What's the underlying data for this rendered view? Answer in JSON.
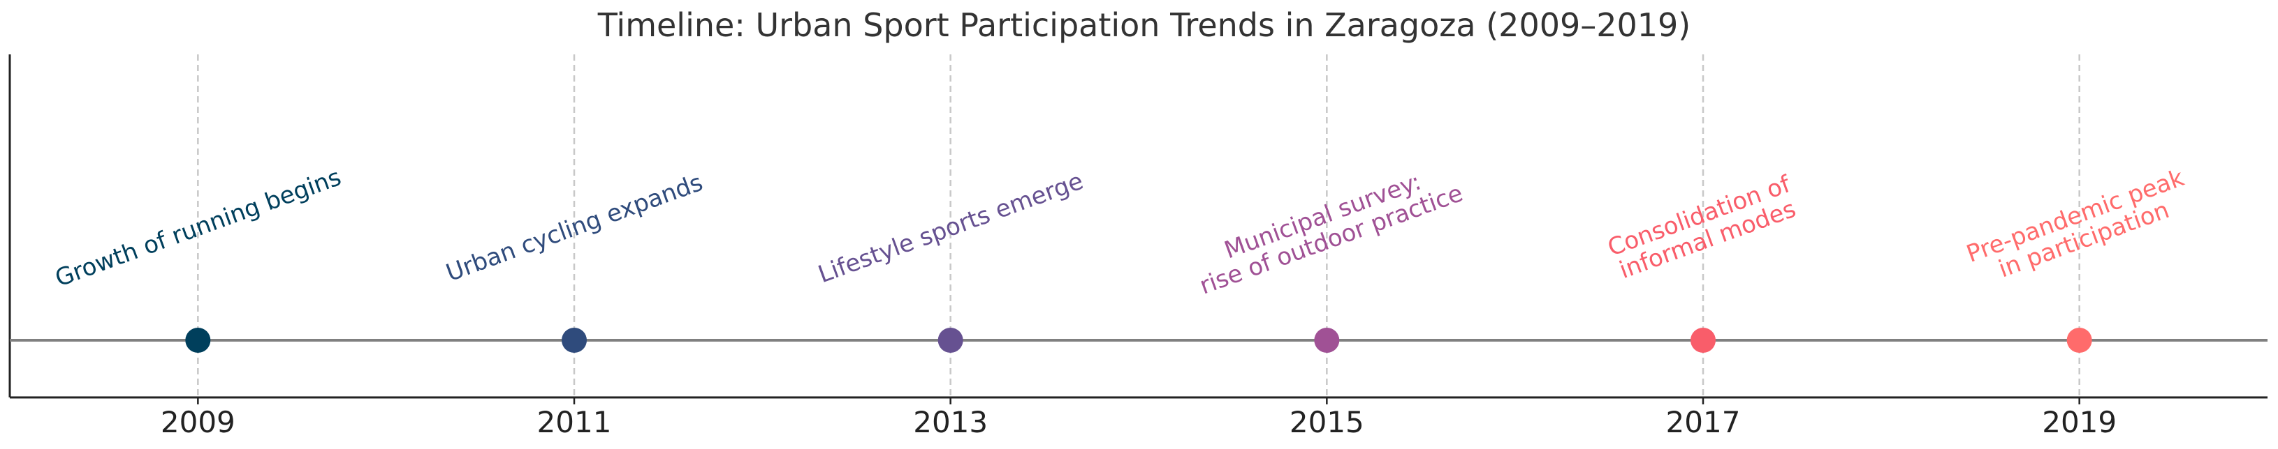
{
  "chart_data": {
    "type": "timeline",
    "title": "Timeline: Urban Sport Participation Trends in Zaragoza (2009–2019)",
    "xlabel": "",
    "ylabel": "",
    "xlim": [
      2008,
      2020
    ],
    "xticks": [
      "2009",
      "2011",
      "2013",
      "2015",
      "2017",
      "2019"
    ],
    "grid": "vertical dashed at event years",
    "events": [
      {
        "year": 2009,
        "label": [
          "Growth of running begins"
        ],
        "color": "#003f5c"
      },
      {
        "year": 2011,
        "label": [
          "Urban cycling expands"
        ],
        "color": "#2f4b7c"
      },
      {
        "year": 2013,
        "label": [
          "Lifestyle sports emerge"
        ],
        "color": "#665191"
      },
      {
        "year": 2015,
        "label": [
          "Municipal survey:",
          "rise of outdoor practice"
        ],
        "color": "#a05195"
      },
      {
        "year": 2017,
        "label": [
          "Consolidation of",
          "informal modes"
        ],
        "color": "#f95d6a"
      },
      {
        "year": 2019,
        "label": [
          "Pre-pandemic peak",
          "in participation"
        ],
        "color": "#ff6b6b"
      }
    ]
  }
}
